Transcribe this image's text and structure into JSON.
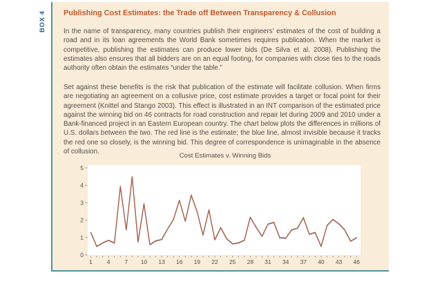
{
  "page": {
    "background": "#ffffff"
  },
  "box": {
    "label": "BOX 4",
    "label_color": "#2a5d8c",
    "background": "#f9ecd9",
    "border_color": "#4f939b",
    "title": "Publishing Cost Estimates: the Trade off Between Transparency & Collusion",
    "title_color": "#c0582c",
    "paragraphs": [
      "In the name of transparency, many countries publish their engineers’ estimates of the cost of building a road and in its loan agreements the World Bank sometimes requires publication. When the market is competitive, publishing the estimates can produce lower bids (De Silva et al. 2008). Publishing the estimates also ensures that all bidders are on an equal footing, for companies with close ties to the roads authority often obtain the estimates “under the table.”",
      "Set against these benefits is the risk that publication of the estimate will facilitate collusion. When firms are negotiating an agreement on a collusive price, cost estimate provides a target or focal point for their agreement (Knittel and Stango 2003). This effect is illustrated in an INT comparison of the estimated price against the winning bid on 46 contracts for road construction and repair let during 2009 and 2010 under a Bank-financed project in an Eastern European country. The chart below plots the differences in millions of U.S. dollars between the two. The red line is the estimate; the blue line, almost invisible because it tracks the red one so closely, is the winning bid. This degree of correspondence is unimaginable in the absence of collusion."
    ]
  },
  "chart_data": {
    "type": "line",
    "title": "Cost Estimates v. Winning Bids",
    "xlabel": "",
    "ylabel": "",
    "ylim": [
      0,
      5
    ],
    "y_ticks": [
      0,
      1,
      2,
      3,
      4,
      5
    ],
    "x": [
      1,
      2,
      3,
      4,
      5,
      6,
      7,
      8,
      9,
      10,
      11,
      12,
      13,
      14,
      15,
      16,
      17,
      18,
      19,
      20,
      21,
      22,
      23,
      24,
      25,
      26,
      27,
      28,
      29,
      30,
      31,
      32,
      33,
      34,
      35,
      36,
      37,
      38,
      39,
      40,
      41,
      42,
      43,
      44,
      45,
      46
    ],
    "x_tick_labels": [
      1,
      4,
      7,
      10,
      13,
      16,
      19,
      22,
      25,
      28,
      31,
      34,
      37,
      40,
      43,
      46
    ],
    "grid": false,
    "legend": "none",
    "plot_bg": "#ffffff",
    "series": [
      {
        "name": "Cost estimate",
        "color": "#ad5a3d",
        "values": [
          1.3,
          0.5,
          0.7,
          0.85,
          0.7,
          3.95,
          1.45,
          4.5,
          0.75,
          2.95,
          0.6,
          0.82,
          0.9,
          1.5,
          2.05,
          3.15,
          1.95,
          3.45,
          2.5,
          1.15,
          2.6,
          0.88,
          1.58,
          0.95,
          0.65,
          0.7,
          0.85,
          2.18,
          1.6,
          1.08,
          1.78,
          1.88,
          1.0,
          0.97,
          1.45,
          1.55,
          2.15,
          1.2,
          1.3,
          0.5,
          1.7,
          2.05,
          1.8,
          1.45,
          0.8,
          1.0
        ]
      },
      {
        "name": "Winning bid",
        "color": "#8fa8c8",
        "values": [
          1.3,
          0.5,
          0.7,
          0.85,
          0.7,
          3.95,
          1.45,
          4.5,
          0.75,
          2.95,
          0.6,
          0.82,
          0.9,
          1.5,
          2.05,
          3.15,
          1.95,
          3.45,
          2.5,
          1.15,
          2.6,
          0.88,
          1.58,
          0.95,
          0.65,
          0.7,
          0.85,
          2.18,
          1.6,
          1.08,
          1.78,
          1.88,
          1.0,
          0.97,
          1.45,
          1.55,
          2.15,
          1.2,
          1.3,
          0.5,
          1.7,
          2.05,
          1.8,
          1.45,
          0.8,
          1.0
        ]
      }
    ]
  }
}
